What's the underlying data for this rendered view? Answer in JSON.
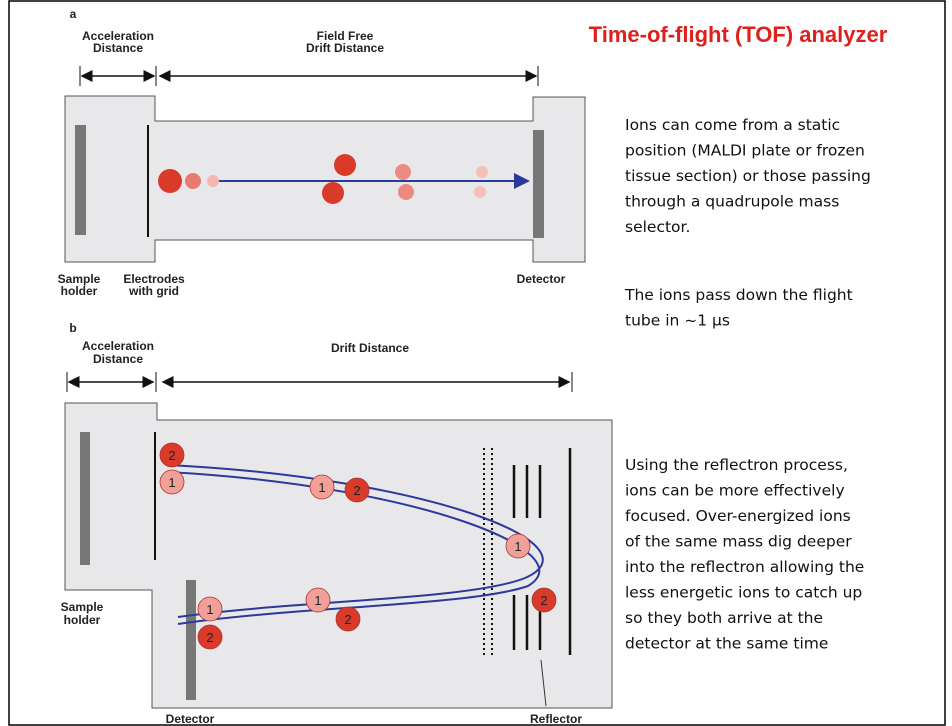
{
  "title": "Time-of-flight (TOF) analyzer",
  "panel_a": {
    "label": "a",
    "acceleration_distance": [
      "Acceleration",
      "Distance"
    ],
    "drift_distance": [
      "Field Free",
      "Drift Distance"
    ],
    "sample_holder": [
      "Sample",
      "holder"
    ],
    "electrodes": [
      "Electrodes",
      "with grid"
    ],
    "detector": "Detector"
  },
  "panel_b": {
    "label": "b",
    "acceleration_distance": [
      "Acceleration",
      "Distance"
    ],
    "drift_distance": "Drift Distance",
    "sample_holder": [
      "Sample",
      "holder"
    ],
    "detector": "Detector",
    "reflector": "Reflector",
    "ions": [
      "2",
      "1",
      "1",
      "2",
      "1",
      "2",
      "1",
      "2",
      "1",
      "2"
    ]
  },
  "notes": [
    [
      "Ions can come from a static",
      "position (MALDI plate or frozen",
      "tissue section) or those passing",
      "through a quadrupole mass",
      "selector."
    ],
    [
      "The ions pass down the flight",
      "tube in ~1 μs"
    ],
    [
      "Using the reflectron process,",
      "ions can be more effectively",
      "focused. Over-energized ions",
      "of the same mass dig deeper",
      "into the reflectron allowing the",
      "less energetic ions to catch up",
      "so they both arrive at the",
      "detector at the same time"
    ]
  ]
}
